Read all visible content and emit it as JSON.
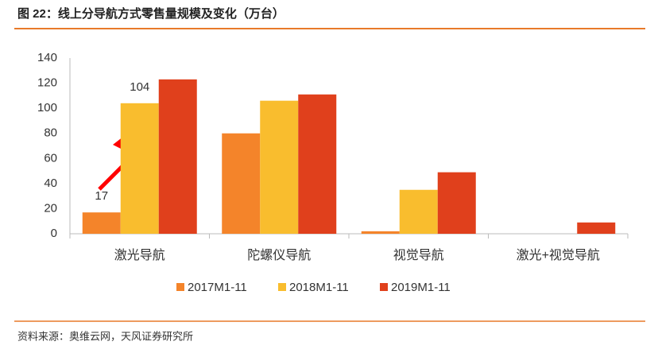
{
  "chart_data": {
    "type": "bar",
    "title": "图 22：线上分导航方式零售量规模及变化（万台）",
    "source": "资料来源：奥维云网，天风证券研究所",
    "categories": [
      "激光导航",
      "陀螺仪导航",
      "视觉导航",
      "激光+视觉导航"
    ],
    "series": [
      {
        "name": "2017M1-11",
        "color": "#f4842a",
        "values": [
          17,
          80,
          2,
          0
        ],
        "value_labels": [
          "17",
          null,
          null,
          null
        ]
      },
      {
        "name": "2018M1-11",
        "color": "#f9bd2e",
        "values": [
          104,
          106,
          35,
          0
        ],
        "value_labels": [
          "104",
          null,
          null,
          null
        ]
      },
      {
        "name": "2019M1-11",
        "color": "#e0401c",
        "values": [
          123,
          111,
          49,
          9
        ]
      }
    ],
    "ylim": [
      0,
      140
    ],
    "yticks": [
      0,
      20,
      40,
      60,
      80,
      100,
      120,
      140
    ],
    "grid": false,
    "legend": "bottom"
  }
}
